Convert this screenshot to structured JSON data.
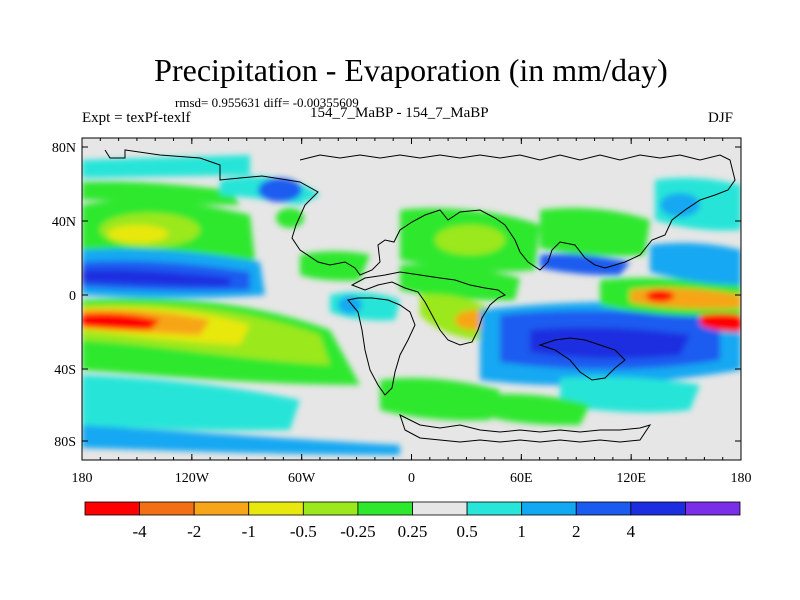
{
  "title": "Precipitation - Evaporation (in mm/day)",
  "stats": "rmsd= 0.955631 diff= -0.00355609",
  "expt": "Expt = texPf-texlf",
  "runs": "154_7_MaBP - 154_7_MaBP",
  "season": "DJF",
  "lat_labels": [
    "80N",
    "40N",
    "0",
    "40S",
    "80S"
  ],
  "lon_labels": [
    "180",
    "120W",
    "60W",
    "0",
    "60E",
    "120E",
    "180"
  ],
  "colorbar": {
    "colors": [
      "#ff0000",
      "#f26f15",
      "#f7a519",
      "#e8e80e",
      "#9be81c",
      "#2ee82e",
      "#e6e6e6",
      "#27e5d8",
      "#13a8f2",
      "#1b5bf0",
      "#1d2ee0",
      "#7b2ee8"
    ],
    "labels": [
      "-4",
      "-2",
      "-1",
      "-0.5",
      "-0.25",
      "0.25",
      "0.5",
      "1",
      "2",
      "4"
    ]
  },
  "colors": {
    "land_background": "#e6e6e6",
    "coastline": "#000000"
  }
}
